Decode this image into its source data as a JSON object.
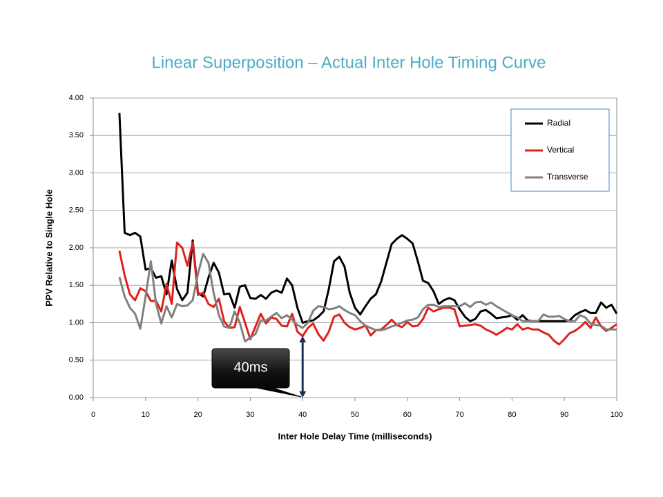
{
  "chart_data": {
    "type": "line",
    "title": "Linear Superposition – Actual Inter Hole Timing Curve",
    "xlabel": "Inter Hole Delay Time (milliseconds)",
    "ylabel": "PPV Relative to Single Hole",
    "x": [
      5,
      6,
      7,
      8,
      9,
      10,
      11,
      12,
      13,
      14,
      15,
      16,
      17,
      18,
      19,
      20,
      21,
      22,
      23,
      24,
      25,
      26,
      27,
      28,
      29,
      30,
      31,
      32,
      33,
      34,
      35,
      36,
      37,
      38,
      39,
      40,
      41,
      42,
      43,
      44,
      45,
      46,
      47,
      48,
      49,
      50,
      51,
      52,
      53,
      54,
      55,
      56,
      57,
      58,
      59,
      60,
      61,
      62,
      63,
      64,
      65,
      66,
      67,
      68,
      69,
      70,
      71,
      72,
      73,
      74,
      75,
      76,
      77,
      78,
      79,
      80,
      81,
      82,
      83,
      84,
      85,
      86,
      87,
      88,
      89,
      90,
      91,
      92,
      93,
      94,
      95,
      96,
      97,
      98,
      99,
      100
    ],
    "series": [
      {
        "name": "Radial",
        "color": "#000000",
        "values": [
          3.8,
          2.2,
          2.17,
          2.2,
          2.15,
          1.71,
          1.73,
          1.6,
          1.62,
          1.38,
          1.83,
          1.45,
          1.3,
          1.4,
          2.1,
          1.4,
          1.35,
          1.6,
          1.8,
          1.67,
          1.38,
          1.39,
          1.2,
          1.48,
          1.5,
          1.33,
          1.32,
          1.37,
          1.32,
          1.4,
          1.43,
          1.4,
          1.59,
          1.5,
          1.2,
          1.0,
          1.02,
          1.03,
          1.08,
          1.15,
          1.45,
          1.82,
          1.88,
          1.75,
          1.4,
          1.2,
          1.11,
          1.22,
          1.32,
          1.38,
          1.55,
          1.8,
          2.05,
          2.12,
          2.17,
          2.12,
          2.06,
          1.82,
          1.56,
          1.53,
          1.42,
          1.25,
          1.3,
          1.33,
          1.3,
          1.18,
          1.08,
          1.02,
          1.05,
          1.15,
          1.17,
          1.12,
          1.06,
          1.07,
          1.08,
          1.1,
          1.04,
          1.1,
          1.03,
          1.02,
          1.02,
          1.02,
          1.02,
          1.02,
          1.02,
          1.02,
          1.03,
          1.1,
          1.14,
          1.17,
          1.13,
          1.13,
          1.27,
          1.2,
          1.24,
          1.12
        ]
      },
      {
        "name": "Vertical",
        "color": "#e0201b",
        "values": [
          1.96,
          1.63,
          1.38,
          1.3,
          1.46,
          1.42,
          1.29,
          1.29,
          1.15,
          1.52,
          1.25,
          2.07,
          2.0,
          1.76,
          2.07,
          1.37,
          1.4,
          1.25,
          1.21,
          1.32,
          1.02,
          0.93,
          0.94,
          1.21,
          1.0,
          0.78,
          0.95,
          1.12,
          0.99,
          1.07,
          1.05,
          0.96,
          0.95,
          1.12,
          0.88,
          0.82,
          0.93,
          0.99,
          0.85,
          0.76,
          0.88,
          1.08,
          1.11,
          1.0,
          0.94,
          0.91,
          0.93,
          0.96,
          0.83,
          0.9,
          0.91,
          0.97,
          1.04,
          0.97,
          0.94,
          1.01,
          0.95,
          0.96,
          1.05,
          1.2,
          1.15,
          1.18,
          1.2,
          1.2,
          1.18,
          0.95,
          0.96,
          0.97,
          0.98,
          0.96,
          0.91,
          0.88,
          0.84,
          0.88,
          0.93,
          0.91,
          0.98,
          0.91,
          0.93,
          0.91,
          0.91,
          0.87,
          0.84,
          0.76,
          0.71,
          0.78,
          0.86,
          0.89,
          0.94,
          1.01,
          0.93,
          1.07,
          0.95,
          0.89,
          0.93,
          0.98
        ]
      },
      {
        "name": "Transverse",
        "color": "#808080",
        "values": [
          1.61,
          1.35,
          1.2,
          1.12,
          0.92,
          1.35,
          1.82,
          1.25,
          0.99,
          1.22,
          1.07,
          1.25,
          1.22,
          1.23,
          1.3,
          1.65,
          1.92,
          1.8,
          1.4,
          1.1,
          0.95,
          0.93,
          1.15,
          1.0,
          0.75,
          0.8,
          0.85,
          1.03,
          1.03,
          1.08,
          1.13,
          1.06,
          1.1,
          1.04,
          0.97,
          0.93,
          1.0,
          1.16,
          1.22,
          1.21,
          1.18,
          1.19,
          1.22,
          1.17,
          1.13,
          1.1,
          1.02,
          0.96,
          0.93,
          0.9,
          0.9,
          0.92,
          0.95,
          0.97,
          1.0,
          1.03,
          1.04,
          1.07,
          1.18,
          1.24,
          1.24,
          1.21,
          1.22,
          1.22,
          1.22,
          1.22,
          1.26,
          1.21,
          1.27,
          1.28,
          1.24,
          1.27,
          1.22,
          1.18,
          1.14,
          1.1,
          1.07,
          1.02,
          1.02,
          1.02,
          1.02,
          1.11,
          1.08,
          1.08,
          1.09,
          1.05,
          1.02,
          1.02,
          1.1,
          1.07,
          0.99,
          0.97,
          0.96,
          0.91,
          0.91,
          0.91
        ]
      }
    ],
    "xlim": [
      0,
      100
    ],
    "xticks": [
      0,
      10,
      20,
      30,
      40,
      50,
      60,
      70,
      80,
      90,
      100
    ],
    "ylim": [
      0,
      4
    ],
    "yticks": [
      {
        "value": 0,
        "label": "0.00"
      },
      {
        "value": 0.5,
        "label": "0.50"
      },
      {
        "value": 1,
        "label": "1.00"
      },
      {
        "value": 1.5,
        "label": "1.50"
      },
      {
        "value": 2,
        "label": "2.00"
      },
      {
        "value": 2.5,
        "label": "2.50"
      },
      {
        "value": 3,
        "label": "3.00"
      },
      {
        "value": 3.5,
        "label": "3.50"
      },
      {
        "value": 4,
        "label": "4.00"
      }
    ],
    "grid": true,
    "legend": "upper right",
    "annotation": {
      "text": "40ms",
      "x": 40,
      "y": 0.82
    }
  }
}
